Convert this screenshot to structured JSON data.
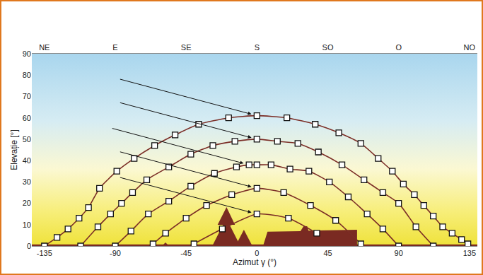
{
  "chart_data": {
    "type": "line",
    "xlabel": "Azimut γ (°)",
    "ylabel": "Elevație [°]",
    "xlim": [
      -143,
      140
    ],
    "ylim": [
      0,
      90
    ],
    "xticks": [
      -135,
      -90,
      -45,
      0,
      45,
      90,
      135
    ],
    "yticks": [
      0,
      10,
      20,
      30,
      40,
      50,
      60,
      70,
      80,
      90
    ],
    "x2lim": [
      -143,
      140
    ],
    "x2ticks": [
      {
        "value": -135,
        "label": "NE"
      },
      {
        "value": -90,
        "label": "E"
      },
      {
        "value": -45,
        "label": "SE"
      },
      {
        "value": 0,
        "label": "S"
      },
      {
        "value": 45,
        "label": "SO"
      },
      {
        "value": 90,
        "label": "O"
      },
      {
        "value": 135,
        "label": "NO"
      }
    ],
    "grid": false,
    "marker": "square",
    "line_style": "solid",
    "series": [
      {
        "color": "#7b2d26",
        "x": [
          -135,
          -127,
          -120,
          -113,
          -107,
          -100,
          -89,
          -78,
          -65,
          -52,
          -37,
          -18,
          0,
          19,
          37,
          52,
          66,
          77,
          86,
          93,
          100,
          106,
          112,
          118,
          124,
          130,
          134
        ],
        "values": [
          0,
          4,
          8,
          13,
          18,
          27,
          35,
          41,
          47,
          52,
          57,
          60,
          61,
          60,
          57,
          53,
          48,
          41,
          35,
          29,
          24,
          19,
          14,
          9,
          6,
          3,
          1
        ]
      },
      {
        "color": "#7b2d26",
        "x": [
          -112,
          -101,
          -93,
          -86,
          -79,
          -70,
          -56,
          -42,
          -28,
          -14,
          0,
          13,
          26,
          39,
          54,
          68,
          80,
          90,
          101,
          112
        ],
        "values": [
          0,
          9,
          15,
          20,
          25,
          31,
          37,
          43,
          47,
          49,
          50,
          49,
          48,
          44,
          38,
          31,
          25,
          20,
          9,
          0
        ]
      },
      {
        "color": "#7b2d26",
        "x": [
          -90,
          -80,
          -69,
          -56,
          -42,
          -27,
          -13,
          -5,
          0,
          9,
          21,
          33,
          46,
          58,
          70,
          80,
          90
        ],
        "values": [
          0,
          7,
          15,
          21,
          28,
          34,
          37,
          38,
          38,
          38,
          36,
          35,
          30,
          23,
          15,
          8,
          0
        ]
      },
      {
        "color": "#7b2d26",
        "x": [
          -66,
          -58,
          -45,
          -32,
          -16,
          0,
          17,
          34,
          50,
          66
        ],
        "values": [
          1,
          6,
          13,
          19,
          24,
          27,
          25,
          19,
          12,
          1
        ]
      },
      {
        "color": "#7b2d26",
        "x": [
          -40,
          -22,
          0,
          20,
          38
        ],
        "values": [
          1,
          8,
          15,
          13,
          6
        ]
      }
    ]
  }
}
